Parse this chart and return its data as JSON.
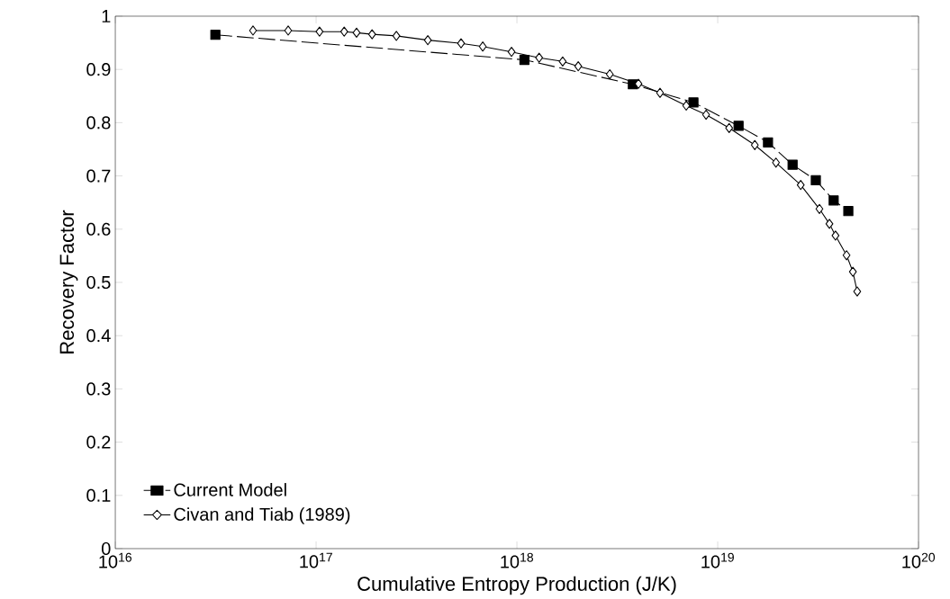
{
  "chart_data": {
    "type": "line",
    "xlabel": "Cumulative Entropy Production (J/K)",
    "ylabel": "Recovery Factor",
    "xlim": [
      1e+16,
      1e+20
    ],
    "ylim": [
      0,
      1
    ],
    "log": "x",
    "xticks": [
      {
        "value": 1e+16,
        "label": "10$^{16}$"
      },
      {
        "value": 1e+17,
        "label": "10$^{17}$"
      },
      {
        "value": 1e+18,
        "label": "10$^{18}$"
      },
      {
        "value": 1e+19,
        "label": "10$^{19}$"
      },
      {
        "value": 1e+20,
        "label": "10$^{20}$"
      }
    ],
    "yticks": [
      0,
      0.1,
      0.2,
      0.3,
      0.4,
      0.5,
      0.6,
      0.7,
      0.8,
      0.9,
      1
    ],
    "grid": false,
    "legend": "bottom left",
    "series": [
      {
        "name": "Current Model",
        "color": "#000000",
        "marker": "square",
        "line_style": "dashed",
        "x": [
          3.15e+16,
          1.09e+18,
          3.78e+18,
          7.57e+18,
          1.27e+19,
          1.78e+19,
          2.36e+19,
          3.08e+19,
          3.78e+19,
          4.47e+19
        ],
        "values": [
          0.965,
          0.918,
          0.872,
          0.838,
          0.794,
          0.763,
          0.721,
          0.692,
          0.654,
          0.634
        ]
      },
      {
        "name": "Civan and Tiab (1989)",
        "color": "#000000",
        "marker": "diamond",
        "line_style": "solid",
        "x": [
          4.85e+16,
          7.26e+16,
          1.04e+17,
          1.38e+17,
          1.59e+17,
          1.9e+17,
          2.51e+17,
          3.6e+17,
          5.27e+17,
          6.76e+17,
          9.4e+17,
          1.29e+18,
          1.69e+18,
          2.02e+18,
          2.9e+18,
          4.03e+18,
          5.16e+18,
          6.97e+18,
          8.75e+18,
          1.14e+19,
          1.53e+19,
          1.95e+19,
          2.59e+19,
          3.21e+19,
          3.6e+19,
          3.86e+19,
          4.38e+19,
          4.71e+19,
          4.95e+19
        ],
        "values": [
          0.973,
          0.973,
          0.971,
          0.971,
          0.969,
          0.966,
          0.963,
          0.955,
          0.949,
          0.943,
          0.933,
          0.922,
          0.915,
          0.906,
          0.891,
          0.873,
          0.856,
          0.832,
          0.815,
          0.79,
          0.758,
          0.725,
          0.683,
          0.638,
          0.61,
          0.588,
          0.551,
          0.52,
          0.483
        ]
      }
    ]
  }
}
